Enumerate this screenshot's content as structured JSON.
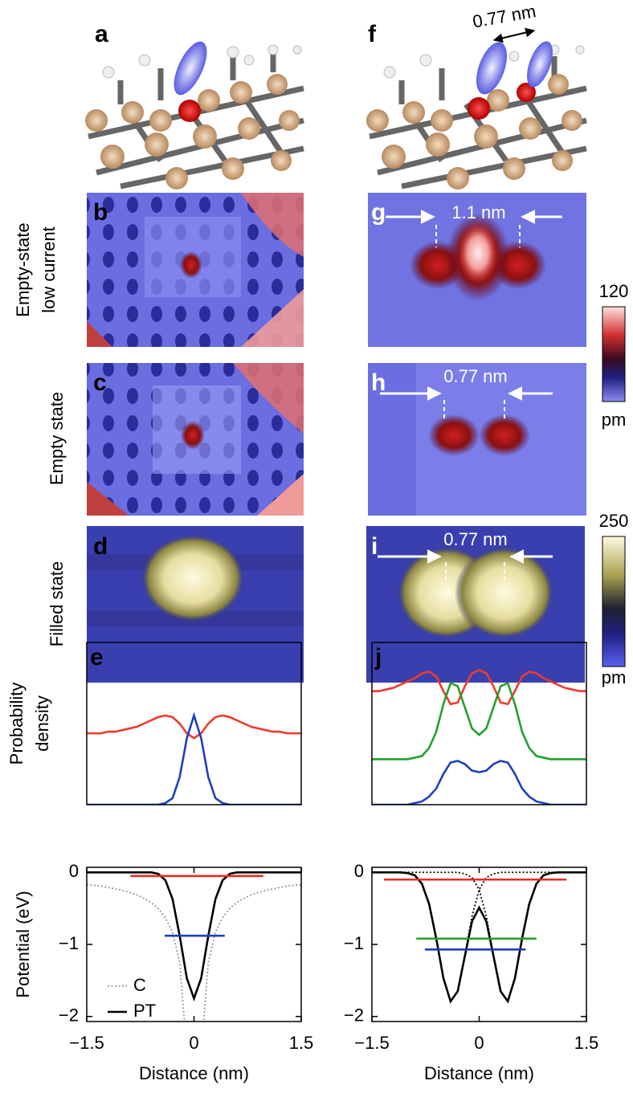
{
  "images": [
    {
      "label": "a"
    },
    {
      "label": "f",
      "annotation": "0.77 nm"
    },
    {
      "label": "b"
    },
    {
      "label": "g",
      "annotation": "1.1 nm"
    },
    {
      "label": "c"
    },
    {
      "label": "h",
      "annotation": "0.77 nm"
    },
    {
      "label": "d"
    },
    {
      "label": "i",
      "annotation": "0.77 nm"
    }
  ],
  "row_labels": [
    [
      "Empty-state",
      "low current"
    ],
    [
      "Empty state"
    ],
    [
      "Filled state"
    ]
  ],
  "colorbars": [
    {
      "max_label": 120,
      "unit": "pm"
    },
    {
      "max_label": 250,
      "unit": "pm"
    }
  ],
  "chart_data": [
    {
      "type": "line",
      "label": "e",
      "ylabel": [
        "Probability",
        "density"
      ],
      "xlim": [
        -1.5,
        1.5
      ],
      "ylim": [
        0,
        1
      ],
      "x": [
        -1.5,
        -1.4,
        -1.3,
        -1.2,
        -1.1,
        -1.0,
        -0.9,
        -0.8,
        -0.7,
        -0.6,
        -0.5,
        -0.4,
        -0.3,
        -0.2,
        -0.1,
        0,
        0.1,
        0.2,
        0.3,
        0.4,
        0.5,
        0.6,
        0.7,
        0.8,
        0.9,
        1.0,
        1.1,
        1.2,
        1.3,
        1.4,
        1.5
      ],
      "series": [
        {
          "color": "#ee3a2e",
          "values": [
            0.44,
            0.44,
            0.44,
            0.45,
            0.45,
            0.46,
            0.47,
            0.48,
            0.5,
            0.52,
            0.54,
            0.55,
            0.54,
            0.5,
            0.44,
            0.41,
            0.44,
            0.5,
            0.54,
            0.55,
            0.54,
            0.52,
            0.5,
            0.48,
            0.47,
            0.46,
            0.45,
            0.45,
            0.44,
            0.44,
            0.44
          ]
        },
        {
          "color": "#1f3fbf",
          "values": [
            0,
            0,
            0,
            0,
            0,
            0,
            0,
            0,
            0,
            0,
            0,
            0.01,
            0.04,
            0.17,
            0.41,
            0.55,
            0.41,
            0.17,
            0.04,
            0.01,
            0,
            0,
            0,
            0,
            0,
            0,
            0,
            0,
            0,
            0,
            0
          ]
        }
      ]
    },
    {
      "type": "line",
      "label": "j",
      "xlim": [
        -1.5,
        1.5
      ],
      "ylim": [
        0,
        1
      ],
      "x": [
        -1.5,
        -1.4,
        -1.3,
        -1.2,
        -1.1,
        -1.0,
        -0.9,
        -0.8,
        -0.7,
        -0.6,
        -0.5,
        -0.4,
        -0.3,
        -0.2,
        -0.1,
        0,
        0.1,
        0.2,
        0.3,
        0.4,
        0.5,
        0.6,
        0.7,
        0.8,
        0.9,
        1.0,
        1.1,
        1.2,
        1.3,
        1.4,
        1.5
      ],
      "series": [
        {
          "color": "#ee3a2e",
          "values": [
            0.7,
            0.7,
            0.71,
            0.72,
            0.74,
            0.76,
            0.78,
            0.81,
            0.82,
            0.79,
            0.7,
            0.62,
            0.63,
            0.73,
            0.81,
            0.83,
            0.81,
            0.73,
            0.63,
            0.62,
            0.7,
            0.79,
            0.82,
            0.81,
            0.78,
            0.76,
            0.74,
            0.72,
            0.71,
            0.7,
            0.7
          ]
        },
        {
          "color": "#22a02a",
          "values": [
            0.28,
            0.28,
            0.28,
            0.28,
            0.28,
            0.28,
            0.29,
            0.3,
            0.35,
            0.45,
            0.62,
            0.75,
            0.73,
            0.6,
            0.47,
            0.43,
            0.47,
            0.6,
            0.73,
            0.75,
            0.62,
            0.45,
            0.35,
            0.3,
            0.29,
            0.28,
            0.28,
            0.28,
            0.28,
            0.28,
            0.28
          ]
        },
        {
          "color": "#1f3fbf",
          "values": [
            0,
            0,
            0,
            0,
            0,
            0,
            0.01,
            0.02,
            0.05,
            0.1,
            0.19,
            0.26,
            0.27,
            0.25,
            0.21,
            0.2,
            0.21,
            0.25,
            0.27,
            0.26,
            0.19,
            0.1,
            0.05,
            0.02,
            0.01,
            0,
            0,
            0,
            0,
            0,
            0
          ]
        }
      ]
    },
    {
      "type": "line",
      "xlabel": "Distance (nm)",
      "ylabel": "Potential (eV)",
      "xlim": [
        -1.5,
        1.5
      ],
      "ylim": [
        -2.07,
        0.07
      ],
      "xticks": [
        {
          "value": -1.5,
          "label": "−1.5"
        },
        0,
        1.5
      ],
      "yticks": [
        0,
        {
          "value": -1,
          "label": "−1"
        },
        {
          "value": -2,
          "label": "−2"
        }
      ],
      "legend": "lower left",
      "x": [
        -1.5,
        -1.4,
        -1.3,
        -1.2,
        -1.1,
        -1.0,
        -0.9,
        -0.8,
        -0.7,
        -0.6,
        -0.5,
        -0.4,
        -0.3,
        -0.2,
        -0.1,
        0,
        0.1,
        0.2,
        0.3,
        0.4,
        0.5,
        0.6,
        0.7,
        0.8,
        0.9,
        1.0,
        1.1,
        1.2,
        1.3,
        1.4,
        1.5
      ],
      "series": [
        {
          "name": "C",
          "color": "#999999",
          "dash": true,
          "values": [
            -0.17,
            -0.18,
            -0.19,
            -0.21,
            -0.23,
            -0.25,
            -0.28,
            -0.31,
            -0.36,
            -0.42,
            -0.5,
            -0.63,
            -0.83,
            -1.25,
            -2.5,
            null,
            -2.5,
            -1.25,
            -0.83,
            -0.63,
            -0.5,
            -0.42,
            -0.36,
            -0.31,
            -0.28,
            -0.25,
            -0.23,
            -0.21,
            -0.19,
            -0.18,
            -0.17
          ]
        },
        {
          "name": "PT",
          "color": "#000000",
          "values": [
            0,
            0,
            0,
            0,
            0,
            0,
            0,
            0,
            0,
            0,
            -0.02,
            -0.11,
            -0.37,
            -0.88,
            -1.47,
            -1.75,
            -1.47,
            -0.88,
            -0.37,
            -0.11,
            -0.02,
            0,
            0,
            0,
            0,
            0,
            0,
            0,
            0,
            0,
            0
          ]
        },
        {
          "color": "#ee2a22",
          "x": [
            -0.89,
            0.97
          ],
          "values": [
            -0.05,
            -0.05
          ]
        },
        {
          "color": "#1f3fbf",
          "x": [
            -0.41,
            0.43
          ],
          "values": [
            -0.88,
            -0.88
          ]
        }
      ]
    },
    {
      "type": "line",
      "xlabel": "Distance (nm)",
      "xlim": [
        -1.5,
        1.5
      ],
      "ylim": [
        -2.07,
        0.07
      ],
      "xticks": [
        {
          "value": -1.5,
          "label": "−1.5"
        },
        0,
        1.5
      ],
      "yticks": [
        0,
        {
          "value": -1,
          "label": "−1"
        },
        {
          "value": -2,
          "label": "−2"
        }
      ],
      "x": [
        -1.5,
        -1.4,
        -1.3,
        -1.2,
        -1.1,
        -1.0,
        -0.9,
        -0.8,
        -0.7,
        -0.6,
        -0.5,
        -0.4,
        -0.3,
        -0.2,
        -0.1,
        0,
        0.1,
        0.2,
        0.3,
        0.4,
        0.5,
        0.6,
        0.7,
        0.8,
        0.9,
        1.0,
        1.1,
        1.2,
        1.3,
        1.4,
        1.5
      ],
      "series": [
        {
          "color": "#000000",
          "dash": true,
          "values": [
            0,
            0,
            0,
            0,
            0,
            -0.01,
            -0.04,
            -0.16,
            -0.44,
            -0.92,
            -1.47,
            -1.79,
            -1.65,
            -1.15,
            -0.61,
            -0.24,
            -0.07,
            -0.02,
            0,
            0,
            0,
            0,
            0,
            0,
            0,
            0,
            0,
            0,
            0,
            0,
            0
          ]
        },
        {
          "color": "#000000",
          "dash": true,
          "values": [
            0,
            0,
            0,
            0,
            0,
            0,
            0,
            0,
            0,
            0,
            0,
            0,
            0,
            -0.02,
            -0.07,
            -0.24,
            -0.61,
            -1.15,
            -1.65,
            -1.79,
            -1.47,
            -0.92,
            -0.44,
            -0.16,
            -0.04,
            -0.01,
            0,
            0,
            0,
            0,
            0
          ]
        },
        {
          "color": "#000000",
          "values": [
            0,
            0,
            0,
            0,
            0,
            -0.01,
            -0.04,
            -0.16,
            -0.44,
            -0.92,
            -1.47,
            -1.79,
            -1.65,
            -1.16,
            -0.68,
            -0.49,
            -0.68,
            -1.16,
            -1.65,
            -1.79,
            -1.47,
            -0.92,
            -0.44,
            -0.16,
            -0.04,
            -0.01,
            0,
            0,
            0,
            0,
            0
          ]
        },
        {
          "color": "#ee2a22",
          "x": [
            -1.33,
            1.22
          ],
          "values": [
            -0.1,
            -0.1
          ]
        },
        {
          "color": "#22a02a",
          "x": [
            -0.88,
            0.8
          ],
          "values": [
            -0.92,
            -0.92
          ]
        },
        {
          "color": "#1f3fbf",
          "x": [
            -0.76,
            0.65
          ],
          "values": [
            -1.07,
            -1.07
          ]
        }
      ]
    }
  ]
}
